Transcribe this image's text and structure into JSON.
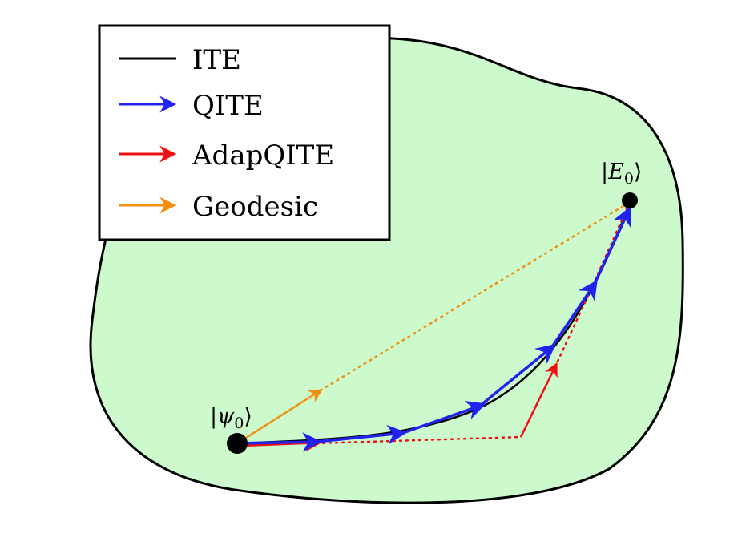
{
  "colors": {
    "region_fill": "#ccfacc",
    "region_stroke": "#000000",
    "ite": "#000000",
    "qite": "#2222ee",
    "adapqite": "#ee1111",
    "geodesic": "#f29111"
  },
  "legend": {
    "items": [
      {
        "label": "ITE",
        "style": "line",
        "color_key": "ite"
      },
      {
        "label": "QITE",
        "style": "arrow",
        "color_key": "qite"
      },
      {
        "label": "AdapQITE",
        "style": "arrow",
        "color_key": "adapqite"
      },
      {
        "label": "Geodesic",
        "style": "arrow",
        "color_key": "geodesic"
      }
    ]
  },
  "points": {
    "start": {
      "ket_open": "|",
      "symbol": "ψ",
      "subscript": "0",
      "ket_close": "⟩"
    },
    "end": {
      "ket_open": "|",
      "symbol": "E",
      "subscript": "0",
      "ket_close": "⟩"
    }
  }
}
